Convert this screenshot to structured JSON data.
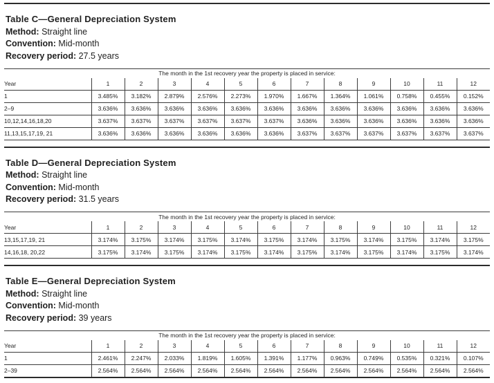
{
  "document": {
    "colors": {
      "text": "#1f1f1f",
      "line": "#3a3a3a",
      "rule": "#2b2b2b",
      "background": "#ffffff"
    },
    "sections": [
      {
        "id": "table-c",
        "title": "Table C—General Depreciation System",
        "meta": [
          {
            "label": "Method:",
            "value": "Straight line"
          },
          {
            "label": "Convention:",
            "value": "Mid-month"
          },
          {
            "label": "Recovery period:",
            "value": "27.5 years"
          }
        ],
        "table": {
          "span_header": "The month in the 1st recovery year the property is placed in service:",
          "row_header": "Year",
          "month_columns": [
            "1",
            "2",
            "3",
            "4",
            "5",
            "6",
            "7",
            "8",
            "9",
            "10",
            "11",
            "12"
          ],
          "rows": [
            {
              "label": "1",
              "values": [
                "3.485%",
                "3.182%",
                "2.879%",
                "2.576%",
                "2.273%",
                "1.970%",
                "1.667%",
                "1.364%",
                "1.061%",
                "0.758%",
                "0.455%",
                "0.152%"
              ]
            },
            {
              "label": "2–9",
              "values": [
                "3.636%",
                "3.636%",
                "3.636%",
                "3.636%",
                "3.636%",
                "3.636%",
                "3.636%",
                "3.636%",
                "3.636%",
                "3.636%",
                "3.636%",
                "3.636%"
              ]
            },
            {
              "label": "10,12,14,16,18,20",
              "values": [
                "3.637%",
                "3.637%",
                "3.637%",
                "3.637%",
                "3.637%",
                "3.637%",
                "3.636%",
                "3.636%",
                "3.636%",
                "3.636%",
                "3.636%",
                "3.636%"
              ]
            },
            {
              "label": "11,13,15,17,19, 21",
              "values": [
                "3.636%",
                "3.636%",
                "3.636%",
                "3.636%",
                "3.636%",
                "3.636%",
                "3.637%",
                "3.637%",
                "3.637%",
                "3.637%",
                "3.637%",
                "3.637%"
              ]
            }
          ]
        }
      },
      {
        "id": "table-d",
        "title": "Table D—General Depreciation System",
        "meta": [
          {
            "label": "Method:",
            "value": "Straight line"
          },
          {
            "label": "Convention:",
            "value": "Mid-month"
          },
          {
            "label": "Recovery period:",
            "value": "31.5 years"
          }
        ],
        "table": {
          "span_header": "The month in the 1st recovery year the property is placed in service:",
          "row_header": "Year",
          "month_columns": [
            "1",
            "2",
            "3",
            "4",
            "5",
            "6",
            "7",
            "8",
            "9",
            "10",
            "11",
            "12"
          ],
          "rows": [
            {
              "label": "13,15,17,19, 21",
              "values": [
                "3.174%",
                "3.175%",
                "3.174%",
                "3.175%",
                "3.174%",
                "3.175%",
                "3.174%",
                "3.175%",
                "3.174%",
                "3.175%",
                "3.174%",
                "3.175%"
              ]
            },
            {
              "label": "14,16,18, 20,22",
              "values": [
                "3.175%",
                "3.174%",
                "3.175%",
                "3.174%",
                "3.175%",
                "3.174%",
                "3.175%",
                "3.174%",
                "3.175%",
                "3.174%",
                "3.175%",
                "3.174%"
              ]
            }
          ]
        }
      },
      {
        "id": "table-e",
        "title": "Table E—General Depreciation System",
        "meta": [
          {
            "label": "Method:",
            "value": "Straight line"
          },
          {
            "label": "Convention:",
            "value": "Mid-month"
          },
          {
            "label": "Recovery period:",
            "value": "39 years"
          }
        ],
        "table": {
          "span_header": "The month in the 1st recovery year the property is placed in service:",
          "row_header": "Year",
          "month_columns": [
            "1",
            "2",
            "3",
            "4",
            "5",
            "6",
            "7",
            "8",
            "9",
            "10",
            "11",
            "12"
          ],
          "rows": [
            {
              "label": "1",
              "values": [
                "2.461%",
                "2.247%",
                "2.033%",
                "1.819%",
                "1.605%",
                "1.391%",
                "1.177%",
                "0.963%",
                "0.749%",
                "0.535%",
                "0.321%",
                "0.107%"
              ]
            },
            {
              "label": "2–39",
              "values": [
                "2.564%",
                "2.564%",
                "2.564%",
                "2.564%",
                "2.564%",
                "2.564%",
                "2.564%",
                "2.564%",
                "2.564%",
                "2.564%",
                "2.564%",
                "2.564%"
              ]
            }
          ]
        }
      }
    ]
  }
}
